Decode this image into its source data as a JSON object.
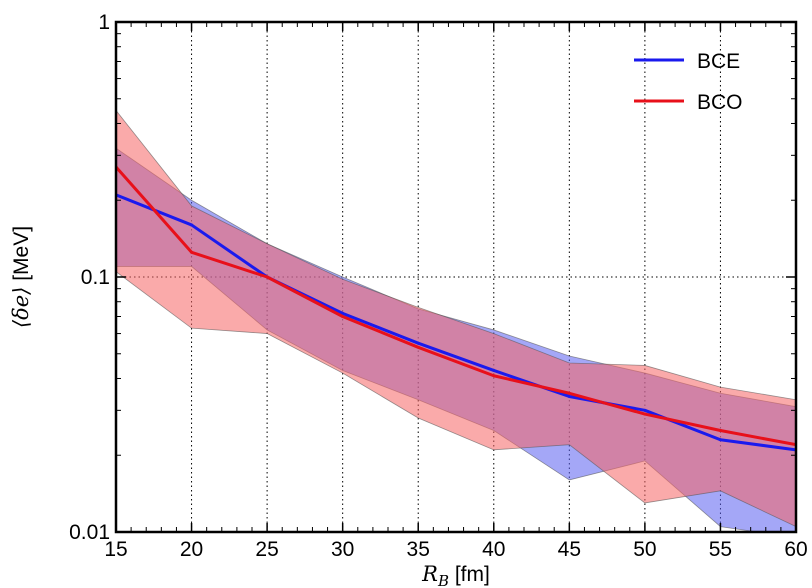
{
  "chart_data": {
    "type": "area",
    "xlabel": "R_B [fm]",
    "xlabel_main": "R",
    "xlabel_sub": "B",
    "xlabel_unit": " [fm]",
    "ylabel": "⟨δe⟩ [MeV]",
    "ylabel_math": "⟨δe⟩",
    "ylabel_unit": " [MeV]",
    "xlim": [
      15,
      60
    ],
    "ylim": [
      0.01,
      1
    ],
    "yscale": "log",
    "grid": true,
    "legend_position": "top-right",
    "x": [
      15,
      20,
      25,
      30,
      35,
      40,
      45,
      50,
      55,
      60
    ],
    "x_tick_labels": [
      "15",
      "20",
      "25",
      "30",
      "35",
      "40",
      "45",
      "50",
      "55",
      "60"
    ],
    "y_ticks": [
      0.01,
      0.1,
      1
    ],
    "y_tick_labels": [
      "0.01",
      "0.1",
      "1"
    ],
    "series": [
      {
        "name": "BCE",
        "color": "#1a1aee",
        "band_color": "#5a5ef0",
        "values": [
          0.21,
          0.16,
          0.1,
          0.072,
          0.055,
          0.043,
          0.034,
          0.03,
          0.023,
          0.021
        ],
        "upper": [
          0.32,
          0.2,
          0.135,
          0.1,
          0.075,
          0.062,
          0.049,
          0.042,
          0.035,
          0.031
        ],
        "lower": [
          0.11,
          0.11,
          0.062,
          0.043,
          0.033,
          0.025,
          0.016,
          0.019,
          0.0105,
          0.0095
        ]
      },
      {
        "name": "BCO",
        "color": "#e8101a",
        "band_color": "#f56464",
        "values": [
          0.27,
          0.125,
          0.1,
          0.07,
          0.053,
          0.041,
          0.035,
          0.029,
          0.025,
          0.022
        ],
        "upper": [
          0.45,
          0.19,
          0.135,
          0.098,
          0.076,
          0.06,
          0.046,
          0.045,
          0.037,
          0.033
        ],
        "lower": [
          0.105,
          0.063,
          0.06,
          0.042,
          0.028,
          0.021,
          0.022,
          0.013,
          0.0145,
          0.0105
        ]
      }
    ]
  }
}
